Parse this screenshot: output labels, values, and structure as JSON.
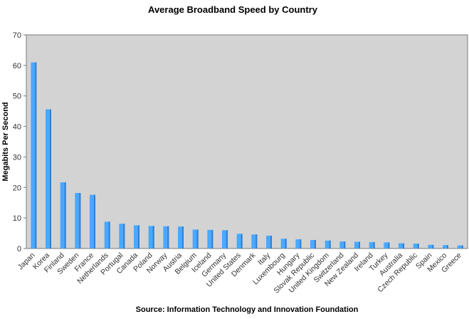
{
  "chart_data": {
    "type": "bar",
    "title": "Average Broadband Speed by Country",
    "xlabel": "Source: Information Technology and Innovation Foundation",
    "ylabel": "Megabits Per Second",
    "ylim": [
      0,
      70
    ],
    "yticks": [
      "0",
      "10",
      "20",
      "30",
      "40",
      "50",
      "60",
      "70"
    ],
    "grid": false,
    "categories": [
      "Japan",
      "Korea",
      "Finland",
      "Sweden",
      "France",
      "Netherlands",
      "Portugal",
      "Canada",
      "Poland",
      "Norway",
      "Austria",
      "Belgium",
      "Iceland",
      "Germany",
      "United States",
      "Denmark",
      "Italy",
      "Luxembourg",
      "Hungary",
      "Slovak Republic",
      "United Kingdom",
      "Switzerland",
      "New Zealand",
      "Ireland",
      "Turkey",
      "Australia",
      "Czech Republic",
      "Spain",
      "Mexico",
      "Greece"
    ],
    "values": [
      61,
      45.6,
      21.7,
      18.2,
      17.6,
      8.8,
      8.1,
      7.6,
      7.4,
      7.3,
      7.2,
      6.2,
      6.1,
      6.0,
      4.8,
      4.6,
      4.2,
      3.2,
      3.0,
      2.8,
      2.6,
      2.3,
      2.2,
      2.1,
      2.0,
      1.7,
      1.6,
      1.2,
      1.1,
      1.0
    ],
    "bar_color": "#4aa8ff",
    "bar_shade_color": "#2f7fd0",
    "plot_background": "#d3d3d3"
  }
}
